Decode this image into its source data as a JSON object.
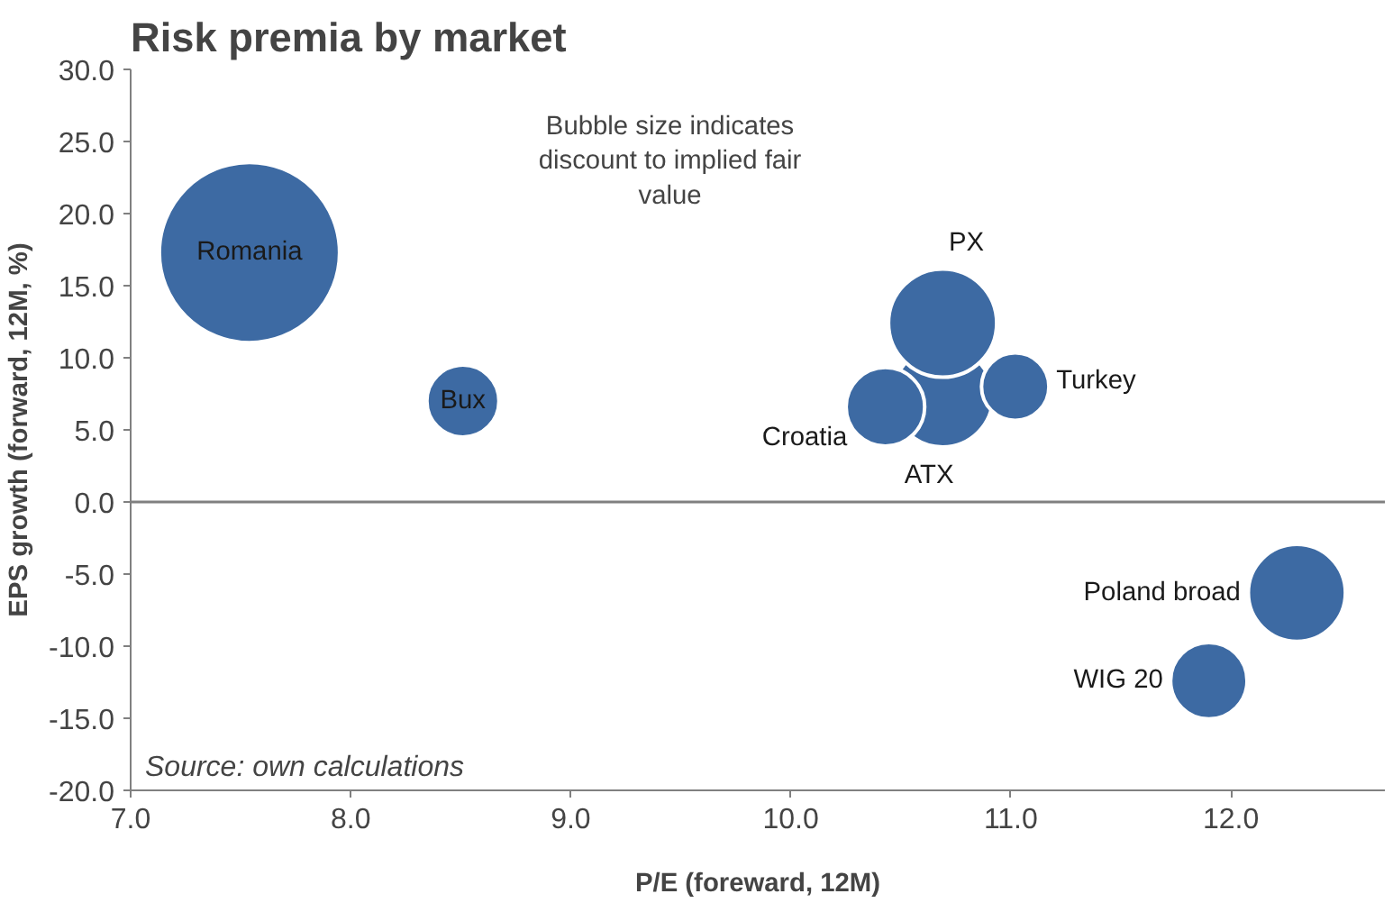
{
  "chart_data": {
    "type": "bubble",
    "title": "Risk premia by market",
    "xlabel": "P/E (foreward, 12M)",
    "ylabel": "EPS growth (forward, 12M, %)",
    "xlim": [
      7.0,
      12.7
    ],
    "xticks": [
      {
        "value": 7,
        "label": "7.0"
      },
      {
        "value": 8,
        "label": "8.0"
      },
      {
        "value": 9,
        "label": "9.0"
      },
      {
        "value": 10,
        "label": "10.0"
      },
      {
        "value": 11,
        "label": "11.0"
      },
      {
        "value": 12,
        "label": "12.0"
      }
    ],
    "ylim": [
      -20,
      30
    ],
    "yticks": [
      {
        "value": -20,
        "label": "-20.0"
      },
      {
        "value": -15,
        "label": "-15.0"
      },
      {
        "value": -10,
        "label": "-10.0"
      },
      {
        "value": -5,
        "label": "-5.0"
      },
      {
        "value": 0,
        "label": "0.0"
      },
      {
        "value": 5,
        "label": "5.0"
      },
      {
        "value": 10,
        "label": "10.0"
      },
      {
        "value": 15,
        "label": "15.0"
      },
      {
        "value": 20,
        "label": "20.0"
      },
      {
        "value": 25,
        "label": "25.0"
      },
      {
        "value": 30,
        "label": "30.0"
      }
    ],
    "grid": false,
    "ref_lines": [
      {
        "axis": "y",
        "value": 0,
        "color": "#808080"
      }
    ],
    "annotations": [
      "Bubble size indicates\ndiscount to implied fair\nvalue",
      "Source: own calculations"
    ],
    "series": [
      {
        "name": "Romania",
        "color": "#3d6aa3",
        "x": [
          7.54
        ],
        "values": [
          17.3
        ],
        "sizes": [
          1
        ]
      },
      {
        "name": "Bux",
        "color": "#3d6aa3",
        "x": [
          8.51
        ],
        "values": [
          7.0
        ],
        "sizes": [
          0.16
        ]
      },
      {
        "name": "ATX",
        "color": "#3d6aa3",
        "x": [
          10.69
        ],
        "values": [
          7.3
        ],
        "sizes": [
          0.31
        ]
      },
      {
        "name": "PX",
        "color": "#3d6aa3",
        "x": [
          10.69
        ],
        "values": [
          12.4
        ],
        "sizes": [
          0.36
        ]
      },
      {
        "name": "Croatia",
        "color": "#3d6aa3",
        "x": [
          10.43
        ],
        "values": [
          6.6
        ],
        "sizes": [
          0.19
        ]
      },
      {
        "name": "Turkey",
        "color": "#3d6aa3",
        "x": [
          11.02
        ],
        "values": [
          8.0
        ],
        "sizes": [
          0.14
        ]
      },
      {
        "name": "Poland broad",
        "color": "#3d6aa3",
        "x": [
          12.3
        ],
        "values": [
          -6.3
        ],
        "sizes": [
          0.29
        ]
      },
      {
        "name": "WIG 20",
        "color": "#3d6aa3",
        "x": [
          11.9
        ],
        "values": [
          -12.4
        ],
        "sizes": [
          0.18
        ]
      }
    ]
  }
}
